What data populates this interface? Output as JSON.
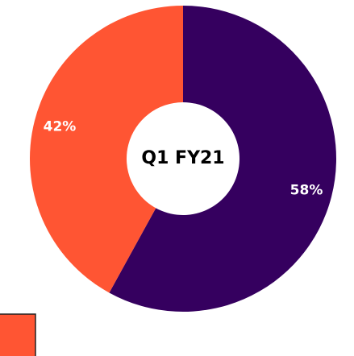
{
  "chart_data": {
    "type": "donut",
    "center_label": "Q1 FY21",
    "values": [
      58,
      42
    ],
    "value_labels": [
      "58%",
      "42%"
    ],
    "colors": [
      "#35005f",
      "#ff5533"
    ]
  }
}
